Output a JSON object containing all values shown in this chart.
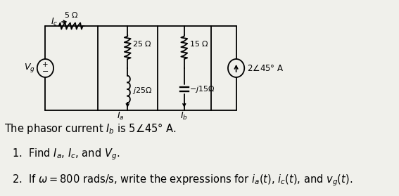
{
  "bg_color": "#f0f0eb",
  "text_lines": [
    "The phasor current $I_b$ is $5\\angle45°$ A.",
    "1.  Find $I_a$, $I_c$, and $V_g$.",
    "2.  If $\\omega = 800$ rads/s, write the expressions for $i_a(t)$, $i_c(t)$, and $v_g(t)$."
  ],
  "font_size_text": 10.5,
  "font_size_labels": 9,
  "font_size_small": 8,
  "cL": 0.72,
  "cR": 3.75,
  "cT": 2.42,
  "cB": 1.22,
  "xN0": 0.72,
  "xN1": 1.55,
  "xN2": 2.5,
  "xN3": 3.35,
  "xN4": 3.75
}
